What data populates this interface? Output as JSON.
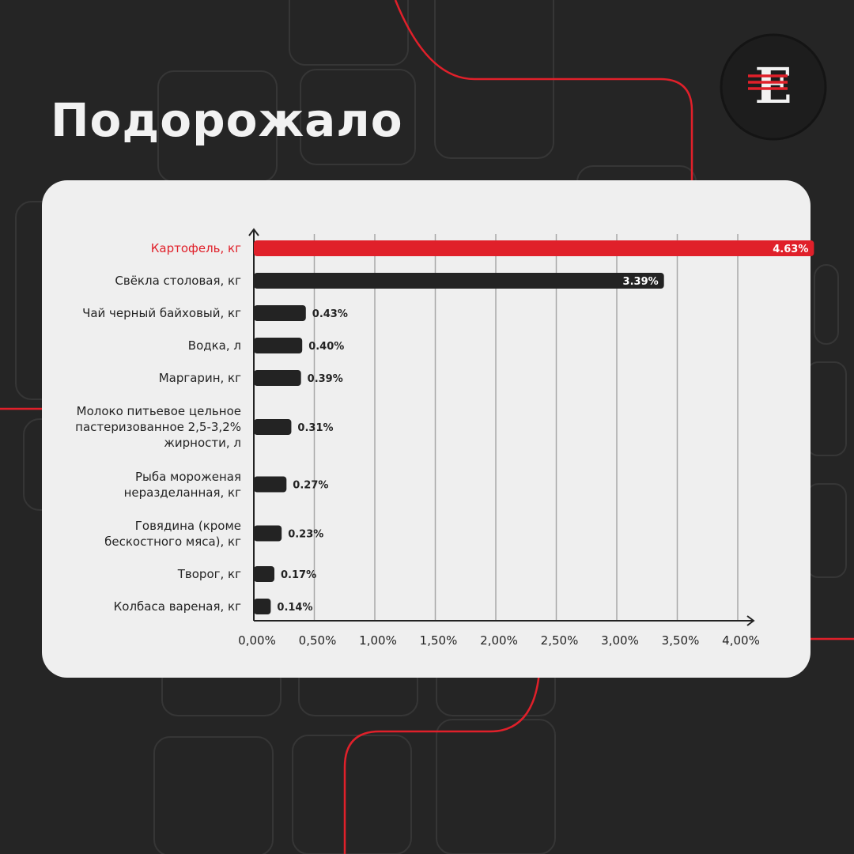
{
  "chart_data": {
    "type": "barh",
    "title": "Подорожало",
    "categories": [
      "Картофель, кг",
      "Свёкла столовая, кг",
      "Чай черный байховый, кг",
      "Водка, л",
      "Маргарин, кг",
      "Молоко питьевое цельное\nпастеризованное 2,5-3,2%\nжирности, л",
      "Рыба мороженая\nнеразделанная, кг",
      "Говядина (кроме\nбескостного мяса), кг",
      "Творог, кг",
      "Колбаса вареная, кг"
    ],
    "values": [
      4.63,
      3.39,
      0.43,
      0.4,
      0.39,
      0.31,
      0.27,
      0.23,
      0.17,
      0.14
    ],
    "value_labels": [
      "4.63%",
      "3.39%",
      "0.43%",
      "0.40%",
      "0.39%",
      "0.31%",
      "0.27%",
      "0.23%",
      "0.17%",
      "0.14%"
    ],
    "colors": [
      "#e0202a",
      "#232323",
      "#232323",
      "#232323",
      "#232323",
      "#232323",
      "#232323",
      "#232323",
      "#232323",
      "#232323"
    ],
    "xlim": [
      0,
      4
    ],
    "xticks": [
      {
        "value": 0,
        "label": "0,00%"
      },
      {
        "value": 0.5,
        "label": "0,50%"
      },
      {
        "value": 1,
        "label": "1,00%"
      },
      {
        "value": 1.5,
        "label": "1,50%"
      },
      {
        "value": 2,
        "label": "2,00%"
      },
      {
        "value": 2.5,
        "label": "2,50%"
      },
      {
        "value": 3,
        "label": "3,00%"
      },
      {
        "value": 3.5,
        "label": "3,50%"
      },
      {
        "value": 4,
        "label": "4,00%"
      }
    ],
    "grid": true
  }
}
